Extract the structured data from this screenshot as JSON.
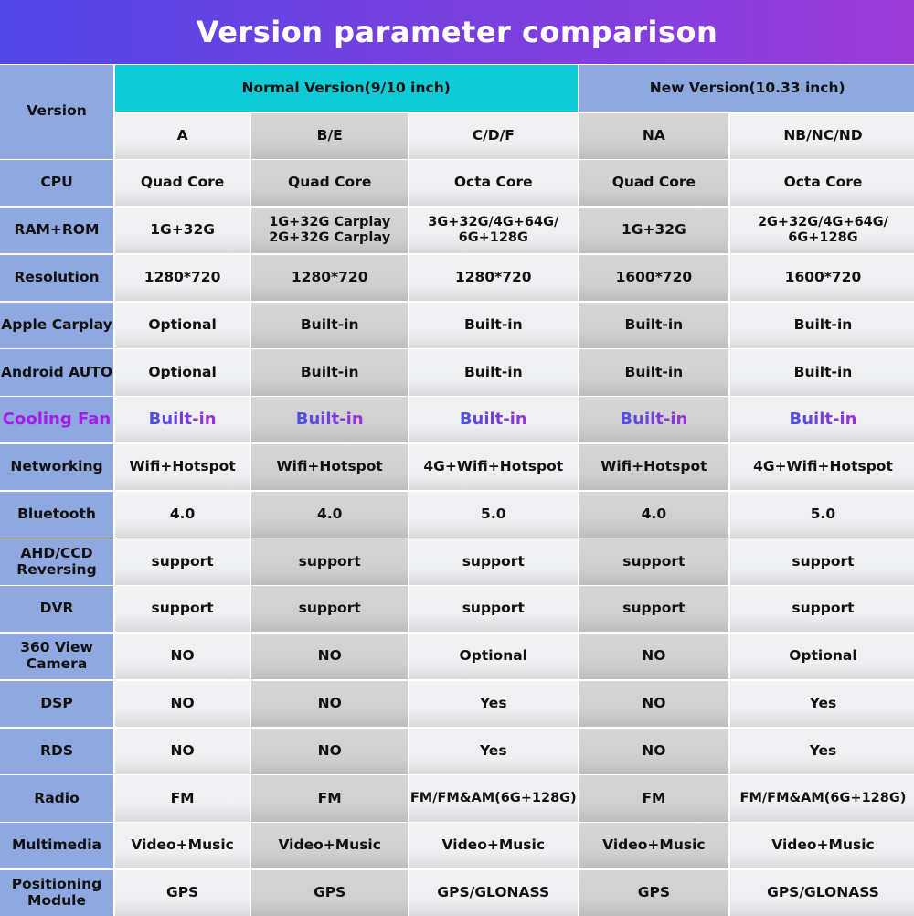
{
  "title": "Version parameter comparison",
  "header": {
    "version_label": "Version",
    "normal_group": "Normal Version(9/10 inch)",
    "new_group": "New Version(10.33 inch)",
    "models": [
      "A",
      "B/E",
      "C/D/F",
      "NA",
      "NB/NC/ND"
    ]
  },
  "colors": {
    "title_gradient_start": "#5146e6",
    "title_gradient_end": "#9d3ad8",
    "normal_header": "#0ccad6",
    "new_header": "#8ea8e0",
    "label_column": "#8fa8e0",
    "highlight": "#a21ee8"
  },
  "rows": [
    {
      "label": "CPU",
      "values": [
        "Quad Core",
        "Quad Core",
        "Octa Core",
        "Quad Core",
        "Octa Core"
      ]
    },
    {
      "label": "RAM+ROM",
      "values": [
        "1G+32G",
        "1G+32G Carplay\n2G+32G Carplay",
        "3G+32G/4G+64G/\n6G+128G",
        "1G+32G",
        "2G+32G/4G+64G/\n6G+128G"
      ]
    },
    {
      "label": "Resolution",
      "values": [
        "1280*720",
        "1280*720",
        "1280*720",
        "1600*720",
        "1600*720"
      ]
    },
    {
      "label": "Apple Carplay",
      "values": [
        "Optional",
        "Built-in",
        "Built-in",
        "Built-in",
        "Built-in"
      ]
    },
    {
      "label": "Android AUTO",
      "values": [
        "Optional",
        "Built-in",
        "Built-in",
        "Built-in",
        "Built-in"
      ]
    },
    {
      "label": "Cooling Fan",
      "highlight": true,
      "values": [
        "Built-in",
        "Built-in",
        "Built-in",
        "Built-in",
        "Built-in"
      ]
    },
    {
      "label": "Networking",
      "values": [
        "Wifi+Hotspot",
        "Wifi+Hotspot",
        "4G+Wifi+Hotspot",
        "Wifi+Hotspot",
        "4G+Wifi+Hotspot"
      ]
    },
    {
      "label": "Bluetooth",
      "values": [
        "4.0",
        "4.0",
        "5.0",
        "4.0",
        "5.0"
      ]
    },
    {
      "label": "AHD/CCD\nReversing",
      "values": [
        "support",
        "support",
        "support",
        "support",
        "support"
      ]
    },
    {
      "label": "DVR",
      "values": [
        "support",
        "support",
        "support",
        "support",
        "support"
      ]
    },
    {
      "label": "360 View\nCamera",
      "values": [
        "NO",
        "NO",
        "Optional",
        "NO",
        "Optional"
      ]
    },
    {
      "label": "DSP",
      "values": [
        "NO",
        "NO",
        "Yes",
        "NO",
        "Yes"
      ]
    },
    {
      "label": "RDS",
      "values": [
        "NO",
        "NO",
        "Yes",
        "NO",
        "Yes"
      ]
    },
    {
      "label": "Radio",
      "values": [
        "FM",
        "FM",
        "FM/FM&AM(6G+128G)",
        "FM",
        "FM/FM&AM(6G+128G)"
      ]
    },
    {
      "label": "Multimedia",
      "values": [
        "Video+Music",
        "Video+Music",
        "Video+Music",
        "Video+Music",
        "Video+Music"
      ]
    },
    {
      "label": "Positioning\nModule",
      "values": [
        "GPS",
        "GPS",
        "GPS/GLONASS",
        "GPS",
        "GPS/GLONASS"
      ]
    }
  ]
}
